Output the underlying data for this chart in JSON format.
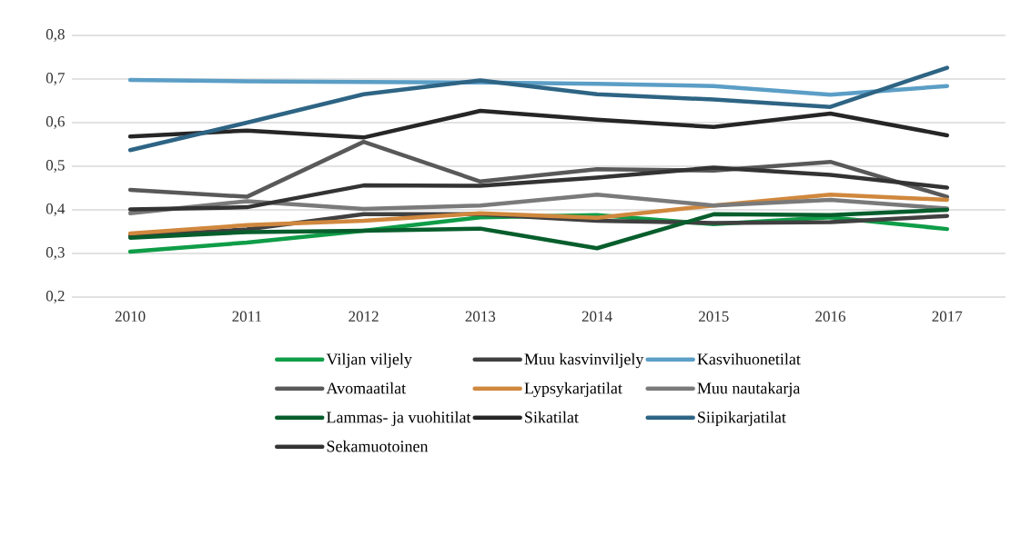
{
  "chart_data": {
    "type": "line",
    "categories": [
      "2010",
      "2011",
      "2012",
      "2013",
      "2014",
      "2015",
      "2016",
      "2017"
    ],
    "ylim": [
      0.2,
      0.8
    ],
    "yticks": [
      {
        "value": 0.2,
        "label": "0,2"
      },
      {
        "value": 0.3,
        "label": "0,3"
      },
      {
        "value": 0.4,
        "label": "0,4"
      },
      {
        "value": 0.5,
        "label": "0,5"
      },
      {
        "value": 0.6,
        "label": "0,6"
      },
      {
        "value": 0.7,
        "label": "0,7"
      },
      {
        "value": 0.8,
        "label": "0,8"
      }
    ],
    "grid": "y",
    "legend": "bottom",
    "marker": "none",
    "line_style": "solid",
    "series": [
      {
        "name": "Viljan viljely",
        "color": "#0f9d48",
        "values": [
          0.304,
          0.325,
          0.352,
          0.383,
          0.388,
          0.367,
          0.383,
          0.356
        ]
      },
      {
        "name": "Muu kasvinviljely",
        "color": "#404040",
        "values": [
          0.34,
          0.355,
          0.39,
          0.39,
          0.375,
          0.37,
          0.372,
          0.386
        ]
      },
      {
        "name": "Kasvihuonetilat",
        "color": "#5b9ec6",
        "values": [
          0.698,
          0.695,
          0.693,
          0.692,
          0.689,
          0.684,
          0.664,
          0.684
        ]
      },
      {
        "name": "Avomaatilat",
        "color": "#595959",
        "values": [
          0.446,
          0.43,
          0.556,
          0.465,
          0.493,
          0.49,
          0.51,
          0.43
        ]
      },
      {
        "name": "Lypsykarjatilat",
        "color": "#d0883e",
        "values": [
          0.346,
          0.365,
          0.375,
          0.392,
          0.382,
          0.41,
          0.435,
          0.423
        ]
      },
      {
        "name": "Muu nautakarja",
        "color": "#7a7a7a",
        "values": [
          0.392,
          0.42,
          0.402,
          0.41,
          0.435,
          0.41,
          0.423,
          0.403
        ]
      },
      {
        "name": "Lammas- ja vuohitilat",
        "color": "#075e2c",
        "values": [
          0.336,
          0.349,
          0.352,
          0.357,
          0.312,
          0.39,
          0.388,
          0.4
        ]
      },
      {
        "name": "Sikatilat",
        "color": "#262626",
        "values": [
          0.568,
          0.582,
          0.566,
          0.627,
          0.607,
          0.59,
          0.621,
          0.571
        ]
      },
      {
        "name": "Siipikarjatilat",
        "color": "#2e6484",
        "values": [
          0.537,
          0.6,
          0.665,
          0.697,
          0.665,
          0.653,
          0.636,
          0.726
        ]
      },
      {
        "name": "Sekamuotoinen",
        "color": "#333333",
        "values": [
          0.401,
          0.406,
          0.456,
          0.455,
          0.474,
          0.497,
          0.48,
          0.451
        ]
      }
    ]
  }
}
